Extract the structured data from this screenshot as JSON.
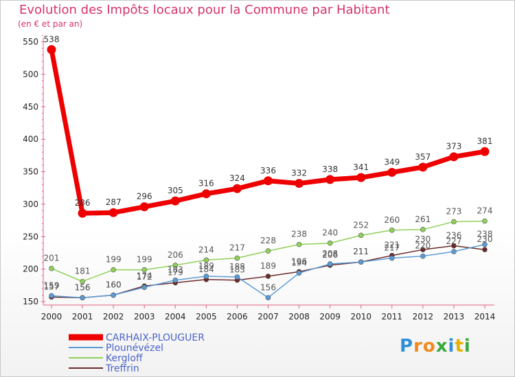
{
  "chart_data": {
    "type": "line",
    "title": "Evolution des Impôts locaux pour la Commune par Habitant",
    "subtitle": "(en € et par an)",
    "x": [
      "2000",
      "2001",
      "2002",
      "2003",
      "2004",
      "2005",
      "2006",
      "2007",
      "2008",
      "2009",
      "2010",
      "2011",
      "2012",
      "2013",
      "2014"
    ],
    "ylim": [
      150,
      560
    ],
    "yticks": [
      150,
      200,
      250,
      300,
      350,
      400,
      450,
      500,
      550
    ],
    "grid": false,
    "legend_position": "bottom",
    "series": [
      {
        "name": "CARHAIX-PLOUGUER",
        "color": "#ee0000",
        "values": [
          538,
          286,
          287,
          296,
          305,
          316,
          324,
          336,
          332,
          338,
          341,
          349,
          357,
          373,
          381
        ]
      },
      {
        "name": "Plounévézel",
        "color": "#5b9bd5",
        "values": [
          159,
          156,
          160,
          172,
          183,
          189,
          188,
          156,
          194,
          208,
          211,
          217,
          220,
          227,
          238
        ]
      },
      {
        "name": "Kergloff",
        "color": "#8fd05a",
        "values": [
          201,
          181,
          199,
          199,
          206,
          214,
          217,
          228,
          238,
          240,
          252,
          260,
          261,
          273,
          274
        ]
      },
      {
        "name": "Treffrin",
        "color": "#6b2a2a",
        "values": [
          157,
          156,
          160,
          174,
          179,
          184,
          183,
          189,
          196,
          206,
          211,
          221,
          230,
          236,
          230
        ]
      }
    ]
  },
  "logo": {
    "letters": [
      "P",
      "r",
      "o",
      "x",
      "i",
      "t",
      "i"
    ],
    "colors": [
      "#2f8fd8",
      "#f08a1c",
      "#f08a1c",
      "#3aa83a",
      "#2f8fd8",
      "#e8b000",
      "#3aa83a"
    ]
  }
}
